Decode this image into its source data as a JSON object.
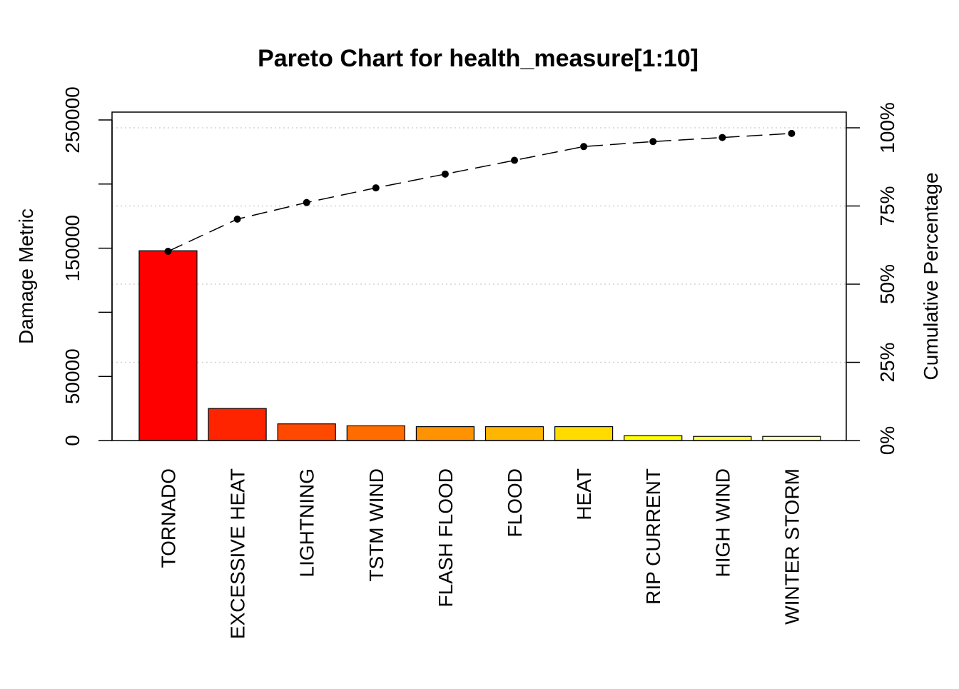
{
  "chart_data": {
    "type": "bar",
    "title": "Pareto Chart for health_measure[1:10]",
    "ylabel": "Damage Metric",
    "y2label": "Cumulative Percentage",
    "xlabel": "",
    "ylim": [
      0,
      250000
    ],
    "y_ticks": [
      0,
      50000,
      100000,
      150000,
      200000,
      250000
    ],
    "y_tick_labels": [
      "0",
      "50000",
      "",
      "150000",
      "",
      "250000"
    ],
    "y2lim": [
      0,
      100
    ],
    "y2_ticks": [
      0,
      25,
      50,
      75,
      100
    ],
    "y2_tick_labels": [
      "0%",
      "25%",
      "50%",
      "75%",
      "100%"
    ],
    "grid": true,
    "categories": [
      "TORNADO",
      "EXCESSIVE HEAT",
      "LIGHTNING",
      "TSTM WIND",
      "FLASH FLOOD",
      "FLOOD",
      "HEAT",
      "RIP CURRENT",
      "HIGH WIND",
      "WINTER STORM"
    ],
    "values": [
      148000,
      25000,
      13000,
      11500,
      10800,
      10800,
      10800,
      3800,
      3200,
      3200
    ],
    "cumulative_percent": [
      60.5,
      70.8,
      76.1,
      80.8,
      85.2,
      89.6,
      94.0,
      95.6,
      96.9,
      98.2
    ],
    "bar_colors": [
      "#FF0000",
      "#FF2400",
      "#FF4900",
      "#FF6D00",
      "#FF9200",
      "#FFB600",
      "#FFDB00",
      "#FFFF00",
      "#FFFF40",
      "#FFFFBF"
    ]
  }
}
